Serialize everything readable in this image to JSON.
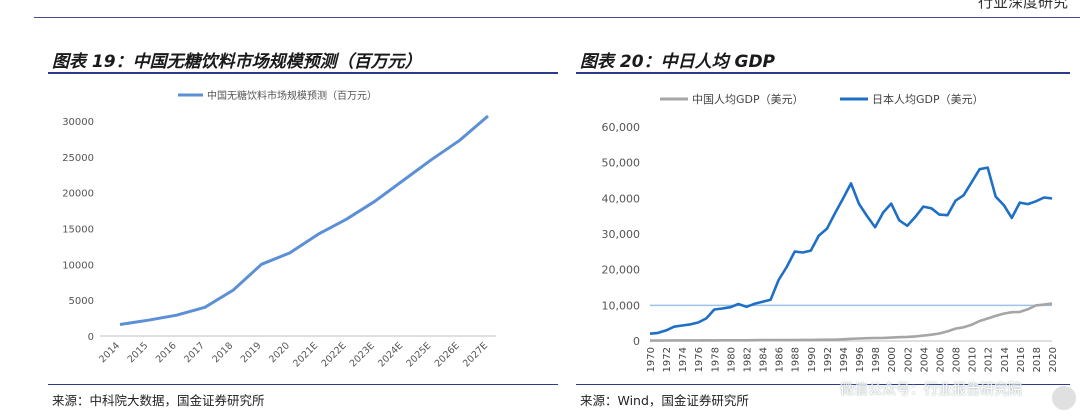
{
  "header": {
    "report_tag": "行业深度研究"
  },
  "watermark": "微信公众号：行业报告研究院",
  "chart_data": [
    {
      "type": "line",
      "title": "图表 19：中国无糖饮料市场规模预测（百万元）",
      "categories": [
        "2014",
        "2015",
        "2016",
        "2017",
        "2018",
        "2019",
        "2020",
        "2021E",
        "2022E",
        "2023E",
        "2024E",
        "2025E",
        "2026E",
        "2027E"
      ],
      "series": [
        {
          "name": "中国无糖饮料市场规模预测（百万元）",
          "color": "#5b8fd6",
          "values": [
            1600,
            2200,
            2900,
            4000,
            6400,
            10000,
            11600,
            14200,
            16300,
            18800,
            21700,
            24600,
            27300,
            30700
          ]
        }
      ],
      "yticks": [
        "0",
        "5000",
        "10000",
        "15000",
        "20000",
        "25000",
        "30000"
      ],
      "ylim": [
        0,
        30000
      ],
      "source": "来源：中科院大数据，国金证券研究所"
    },
    {
      "type": "line",
      "title": "图表 20：中日人均 GDP",
      "x": [
        1970,
        1971,
        1972,
        1973,
        1974,
        1975,
        1976,
        1977,
        1978,
        1979,
        1980,
        1981,
        1982,
        1983,
        1984,
        1985,
        1986,
        1987,
        1988,
        1989,
        1990,
        1991,
        1992,
        1993,
        1994,
        1995,
        1996,
        1997,
        1998,
        1999,
        2000,
        2001,
        2002,
        2003,
        2004,
        2005,
        2006,
        2007,
        2008,
        2009,
        2010,
        2011,
        2012,
        2013,
        2014,
        2015,
        2016,
        2017,
        2018,
        2019,
        2020
      ],
      "xticks": [
        "1970",
        "1972",
        "1974",
        "1976",
        "1978",
        "1980",
        "1982",
        "1984",
        "1986",
        "1988",
        "1990",
        "1992",
        "1994",
        "1996",
        "1998",
        "2000",
        "2002",
        "2004",
        "2006",
        "2008",
        "2010",
        "2012",
        "2014",
        "2016",
        "2018",
        "2020"
      ],
      "series": [
        {
          "name": "中国人均GDP（美元）",
          "color": "#a6a6a6",
          "values": [
            113,
            119,
            132,
            156,
            157,
            175,
            163,
            185,
            156,
            184,
            195,
            197,
            203,
            225,
            250,
            294,
            281,
            251,
            283,
            311,
            318,
            333,
            366,
            377,
            473,
            610,
            709,
            782,
            829,
            873,
            959,
            1053,
            1148,
            1288,
            1508,
            1753,
            2099,
            2694,
            3468,
            3832,
            4550,
            5618,
            6317,
            7051,
            7679,
            8067,
            8148,
            8879,
            9977,
            10217,
            10500
          ]
        },
        {
          "name": "日本人均GDP（美元）",
          "color": "#1f6fc5",
          "values": [
            2037,
            2272,
            2968,
            3997,
            4354,
            4659,
            5197,
            6335,
            8821,
            9105,
            9463,
            10361,
            9578,
            10425,
            10984,
            11585,
            17112,
            20745,
            25052,
            24823,
            25359,
            29549,
            31465,
            35766,
            39933,
            44198,
            38437,
            35022,
            31903,
            36027,
            38532,
            33846,
            32289,
            34808,
            37689,
            37218,
            35434,
            35275,
            39339,
            40855,
            44508,
            48168,
            48603,
            40454,
            38109,
            34524,
            38794,
            38387,
            39159,
            40247,
            39990
          ]
        }
      ],
      "yticks": [
        "0",
        "10,000",
        "20,000",
        "30,000",
        "40,000",
        "50,000",
        "60,000"
      ],
      "ylim": [
        0,
        60000
      ],
      "reference_line": 10000,
      "source": "来源：Wind，国金证券研究所"
    }
  ]
}
